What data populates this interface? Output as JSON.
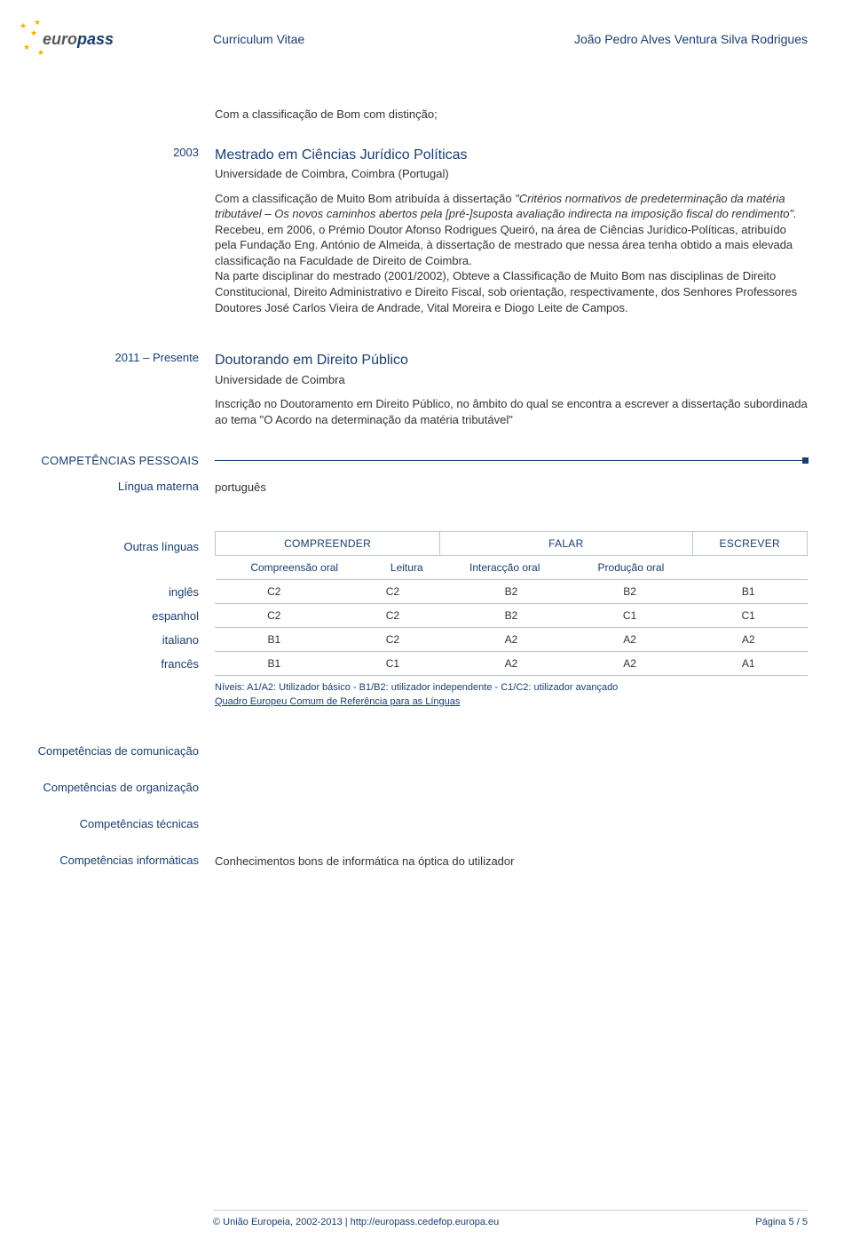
{
  "header": {
    "logo_euro": "euro",
    "logo_pass": "pass",
    "cv_label": "Curriculum Vitae",
    "person_name": "João Pedro Alves Ventura Silva Rodrigues"
  },
  "intro_note": "Com a classificação de Bom com distinção;",
  "entries": [
    {
      "year": "2003",
      "title": "Mestrado em Ciências Jurídico Políticas",
      "institution": "Universidade de Coimbra, Coimbra (Portugal)",
      "body": "Com a classificação de Muito Bom atribuída à dissertação \"Critérios normativos de predeterminação da matéria tributável – Os novos caminhos abertos pela [pré-]suposta avaliação indirecta na imposição fiscal do rendimento\".\nRecebeu, em 2006, o Prémio Doutor Afonso Rodrigues Queiró, na área de Ciências Jurídico-Políticas, atribuído pela Fundação Eng. António de Almeida, à dissertação de mestrado que nessa área tenha obtido a mais elevada classificação na Faculdade de Direito de Coimbra.\nNa parte disciplinar do mestrado (2001/2002), Obteve a Classificação de Muito Bom nas disciplinas de Direito Constitucional, Direito Administrativo e Direito Fiscal, sob orientação, respectivamente, dos Senhores Professores Doutores José Carlos Vieira de Andrade, Vital Moreira e Diogo Leite de Campos."
    },
    {
      "year": "2011 – Presente",
      "title": "Doutorando em Direito Público",
      "institution": "Universidade de Coimbra",
      "body": "Inscrição no Doutoramento em Direito Público, no âmbito do qual se encontra a escrever a dissertação subordinada ao tema \"O Acordo na determinação da matéria tributável\""
    }
  ],
  "personal_skills": {
    "section_label": "COMPETÊNCIAS PESSOAIS",
    "mother_tongue_label": "Língua materna",
    "mother_tongue_value": "português",
    "other_languages_label": "Outras línguas",
    "group_headers": [
      "COMPREENDER",
      "FALAR",
      "ESCREVER"
    ],
    "sub_headers": [
      "Compreensão oral",
      "Leitura",
      "Interacção oral",
      "Produção oral",
      ""
    ],
    "languages": [
      {
        "name": "inglês",
        "levels": [
          "C2",
          "C2",
          "B2",
          "B2",
          "B1"
        ]
      },
      {
        "name": "espanhol",
        "levels": [
          "C2",
          "C2",
          "B2",
          "C1",
          "C1"
        ]
      },
      {
        "name": "italiano",
        "levels": [
          "B1",
          "C2",
          "A2",
          "A2",
          "A2"
        ]
      },
      {
        "name": "francês",
        "levels": [
          "B1",
          "C1",
          "A2",
          "A2",
          "A1"
        ]
      }
    ],
    "levels_note": "Níveis: A1/A2: Utilizador básico - B1/B2: utilizador independente - C1/C2: utilizador avançado",
    "framework_link": "Quadro Europeu Comum de Referência para as Línguas"
  },
  "competences": {
    "communication_label": "Competências de comunicação",
    "organisation_label": "Competências de organização",
    "technical_label": "Competências técnicas",
    "it_label": "Competências informáticas",
    "it_value": "Conhecimentos bons de informática na óptica do utilizador"
  },
  "footer": {
    "copyright": "© União Europeia, 2002-2013 | http://europass.cedefop.europa.eu",
    "page_label": "Página 5 / 5"
  },
  "colors": {
    "brand_blue": "#1a3e6f",
    "text": "#333333",
    "line": "#b8c5d6",
    "star": "#f0b000"
  }
}
